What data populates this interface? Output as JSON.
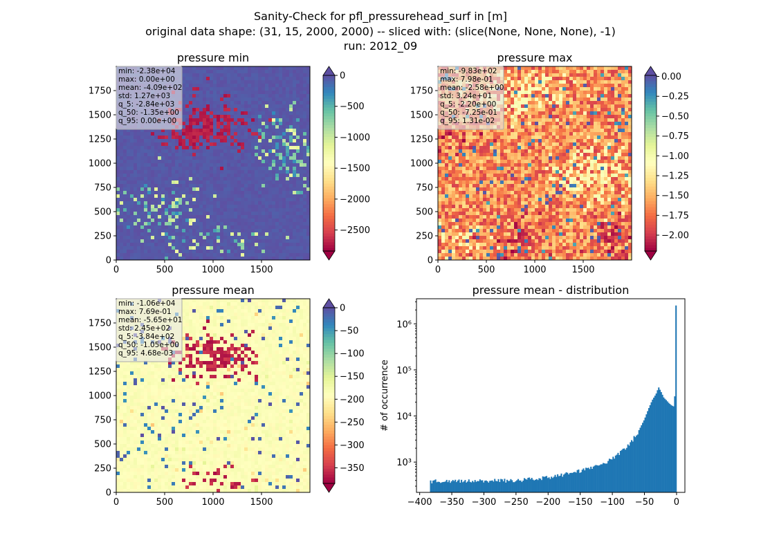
{
  "figure": {
    "title_lines": [
      "Sanity-Check for pfl_pressurehead_surf in [m]",
      "original data shape: (31, 15, 2000, 2000) -- sliced with: (slice(None, None, None), -1)",
      "run: 2012_09"
    ]
  },
  "colormap": {
    "name": "Spectral",
    "stops": [
      "#9e0142",
      "#d53e4f",
      "#f46d43",
      "#fdae61",
      "#fee08b",
      "#ffffbf",
      "#e6f598",
      "#abdda4",
      "#66c2a5",
      "#3288bd",
      "#5e4fa2"
    ]
  },
  "chart_data": [
    {
      "type": "heatmap",
      "title": "pressure min",
      "x_ticks": [
        "0",
        "500",
        "1000",
        "1500"
      ],
      "y_ticks": [
        "0",
        "250",
        "500",
        "750",
        "1000",
        "1250",
        "1500",
        "1750"
      ],
      "x_range": [
        0,
        2000
      ],
      "y_range": [
        0,
        2000
      ],
      "colorbar": {
        "range": [
          -2840,
          0
        ],
        "ticks": [
          0,
          -500,
          -1000,
          -1500,
          -2000,
          -2500
        ],
        "tick_labels": [
          "0",
          "−500",
          "−1000",
          "−1500",
          "−2000",
          "−2500"
        ],
        "extend": "both"
      },
      "stats": [
        "min: -2.38e+04",
        "max: 0.00e+00",
        "mean: -4.09e+02",
        "std: 1.27e+03",
        "q_5: -2.84e+03",
        "q_50: -1.35e+00",
        "q_95: 0.00e+00"
      ]
    },
    {
      "type": "heatmap",
      "title": "pressure max",
      "x_ticks": [
        "0",
        "500",
        "1000",
        "1500"
      ],
      "y_ticks": [
        "0",
        "250",
        "500",
        "750",
        "1000",
        "1250",
        "1500",
        "1750"
      ],
      "x_range": [
        0,
        2000
      ],
      "y_range": [
        0,
        2000
      ],
      "colorbar": {
        "range": [
          -2.2,
          0.0131
        ],
        "ticks": [
          0.0,
          -0.25,
          -0.5,
          -0.75,
          -1.0,
          -1.25,
          -1.5,
          -1.75,
          -2.0
        ],
        "tick_labels": [
          "0.00",
          "−0.25",
          "−0.50",
          "−0.75",
          "−1.00",
          "−1.25",
          "−1.50",
          "−1.75",
          "−2.00"
        ],
        "extend": "both"
      },
      "stats": [
        "min: -9.83e+02",
        "max: 7.98e-01",
        "mean: -2.58e+00",
        "std: 3.24e+01",
        "q_5: -2.20e+00",
        "q_50: -7.25e-01",
        "q_95: 1.31e-02"
      ]
    },
    {
      "type": "heatmap",
      "title": "pressure mean",
      "x_ticks": [
        "0",
        "500",
        "1000",
        "1500"
      ],
      "y_ticks": [
        "0",
        "250",
        "500",
        "750",
        "1000",
        "1250",
        "1500",
        "1750"
      ],
      "x_range": [
        0,
        2000
      ],
      "y_range": [
        0,
        2000
      ],
      "colorbar": {
        "range": [
          -384,
          0.00468
        ],
        "ticks": [
          0,
          -50,
          -100,
          -150,
          -200,
          -250,
          -300,
          -350
        ],
        "tick_labels": [
          "0",
          "−50",
          "−100",
          "−150",
          "−200",
          "−250",
          "−300",
          "−350"
        ],
        "extend": "both"
      },
      "stats": [
        "min: -1.06e+04",
        "max: 7.69e-01",
        "mean: -5.65e+01",
        "std: 2.45e+02",
        "q_5: -3.84e+02",
        "q_50: -1.05e+00",
        "q_95: 4.68e-03"
      ]
    },
    {
      "type": "bar",
      "subtype": "histogram",
      "title": "pressure mean - distribution",
      "ylabel": "# of occurrence",
      "x_range": [
        -405,
        13
      ],
      "x_ticks": [
        -400,
        -350,
        -300,
        -250,
        -200,
        -150,
        -100,
        -50,
        0
      ],
      "x_tick_labels": [
        "−400",
        "−350",
        "−300",
        "−250",
        "−200",
        "−150",
        "−100",
        "−50",
        "0"
      ],
      "y_scale": "log",
      "y_range": [
        220,
        3500000
      ],
      "y_ticks": [
        1000,
        10000,
        100000,
        1000000
      ],
      "y_tick_labels": [
        "10³",
        "10⁴",
        "10⁵",
        "10⁶"
      ],
      "bin_range": [
        -384,
        0
      ],
      "bins": 200,
      "color": "#1f77b4",
      "profile": [
        [
          -384,
          380
        ],
        [
          -360,
          390
        ],
        [
          -340,
          385
        ],
        [
          -320,
          395
        ],
        [
          -300,
          390
        ],
        [
          -280,
          400
        ],
        [
          -260,
          395
        ],
        [
          -240,
          410
        ],
        [
          -220,
          430
        ],
        [
          -200,
          470
        ],
        [
          -180,
          520
        ],
        [
          -160,
          600
        ],
        [
          -140,
          700
        ],
        [
          -130,
          760
        ],
        [
          -120,
          850
        ],
        [
          -110,
          1000
        ],
        [
          -100,
          1200
        ],
        [
          -90,
          1500
        ],
        [
          -80,
          2000
        ],
        [
          -70,
          2800
        ],
        [
          -60,
          4500
        ],
        [
          -50,
          8500
        ],
        [
          -44,
          14000
        ],
        [
          -38,
          22000
        ],
        [
          -32,
          30000
        ],
        [
          -28,
          42000
        ],
        [
          -24,
          33000
        ],
        [
          -20,
          25000
        ],
        [
          -16,
          22000
        ],
        [
          -12,
          19000
        ],
        [
          -8,
          17000
        ],
        [
          -4,
          16000
        ],
        [
          -2,
          40000
        ],
        [
          -1,
          370000
        ],
        [
          0,
          2500000
        ]
      ]
    }
  ]
}
